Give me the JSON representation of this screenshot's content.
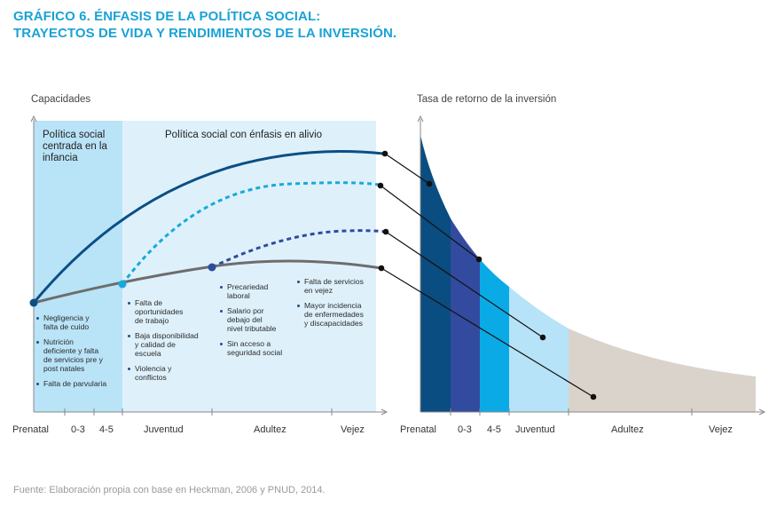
{
  "title_line1": "GRÁFICO 6. ÉNFASIS DE LA POLÍTICA SOCIAL:",
  "title_line2": "TRAYECTOS DE VIDA Y RENDIMIENTOS DE LA INVERSIÓN.",
  "left_chart": {
    "y_axis_label": "Capacidades",
    "zone1_label_lines": [
      "Política social",
      "centrada en la",
      "infancia"
    ],
    "zone2_label": "Política social con énfasis en alivio",
    "x_ticks": [
      "Prenatal",
      "0-3",
      "4-5",
      "Juventud",
      "Adultez",
      "Vejez"
    ],
    "bullets_prenatal": [
      [
        "Negligencia y",
        "falta de cuido"
      ],
      [
        "Nutrición",
        "deficiente y falta",
        "de servicios pre y",
        "post natales"
      ],
      [
        "Falta de parvularia"
      ]
    ],
    "bullets_juventud": [
      [
        "Falta de",
        "oportunidades",
        "de trabajo"
      ],
      [
        "Baja disponibilidad",
        "y calidad de",
        "escuela"
      ],
      [
        "Violencia y",
        "conflictos"
      ]
    ],
    "bullets_adultez": [
      [
        "Precariedad",
        "laboral"
      ],
      [
        "Salario por",
        "debajo del",
        "nivel tributable"
      ],
      [
        "Sin acceso a",
        "seguridad social"
      ]
    ],
    "bullets_vejez": [
      [
        "Falta de servicios",
        "en vejez"
      ],
      [
        "Mayor incidencia",
        "de enfermedades",
        "y discapacidades"
      ]
    ]
  },
  "right_chart": {
    "y_axis_label": "Tasa de retorno de la inversión",
    "x_ticks": [
      "Prenatal",
      "0-3",
      "4-5",
      "Juventud",
      "Adultez",
      "Vejez"
    ]
  },
  "colors": {
    "title": "#1aa2d6",
    "zone_infancia": "#b9e3f7",
    "zone_alivio": "#def1fb",
    "curve_top": "#0b4f86",
    "curve_dotted_light": "#17a9dd",
    "curve_dotted_dark": "#2e4b9e",
    "curve_base": "#6d6d6d",
    "band_prenatal": "#0a4d80",
    "band_03": "#324b9f",
    "band_45": "#0aaae6",
    "band_juventud": "#b6e3f7",
    "band_adultez": "#d9d3cb"
  },
  "source": "Fuente: Elaboración propia con base en Heckman, 2006 y PNUD, 2014."
}
